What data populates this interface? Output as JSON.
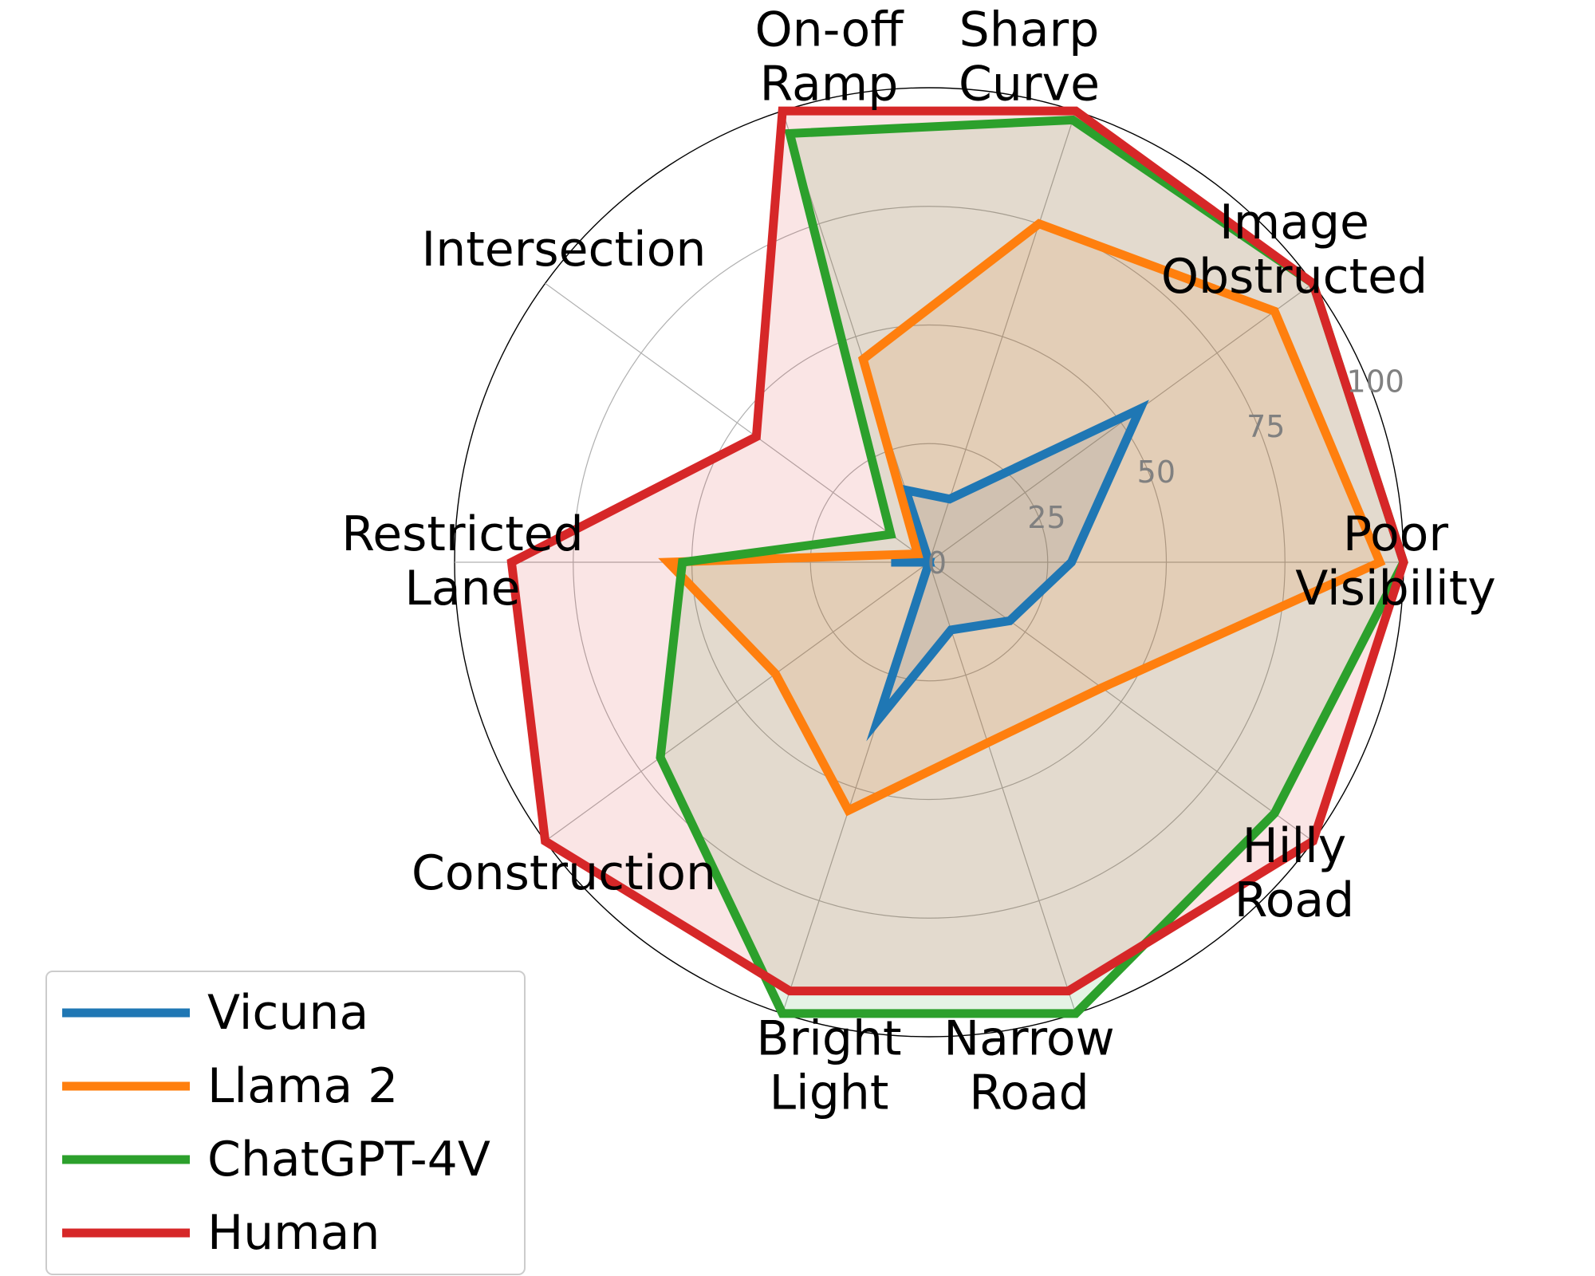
{
  "chart_data": {
    "type": "radar",
    "title": "",
    "categories": [
      "Poor\nVisibility",
      "Image\nObstructed",
      "Sharp\nCurve",
      "On-off\nRamp",
      "Intersection",
      "Restricted\nLane",
      "Construction",
      "Bright\nLight",
      "Narrow\nRoad",
      "Hilly\nRoad"
    ],
    "radial_ticks": [
      0,
      25,
      50,
      75,
      100
    ],
    "rlim": [
      0,
      100
    ],
    "grid": true,
    "legend_position": "lower-left",
    "series": [
      {
        "name": "Vicuna",
        "color": "#1f77b4",
        "values": [
          30,
          55,
          14,
          16,
          0,
          8,
          0,
          35,
          15,
          21
        ]
      },
      {
        "name": "Llama 2",
        "color": "#ff7f0e",
        "values": [
          95,
          90,
          75,
          45,
          3,
          55,
          40,
          55,
          40,
          45
        ]
      },
      {
        "name": "ChatGPT-4V",
        "color": "#2ca02c",
        "values": [
          100,
          100,
          98,
          95,
          10,
          52,
          70,
          100,
          100,
          90
        ]
      },
      {
        "name": "Human",
        "color": "#d62728",
        "values": [
          100,
          100,
          100,
          100,
          45,
          88,
          100,
          95,
          95,
          100
        ]
      }
    ]
  }
}
